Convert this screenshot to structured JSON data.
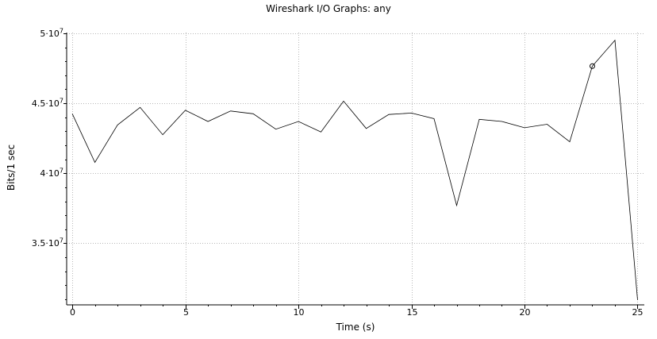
{
  "window": {
    "title": "Wireshark I/O Graphs: any"
  },
  "axes": {
    "x_title": "Time (s)",
    "y_title": "Bits/1 sec"
  },
  "chart_data": {
    "type": "line",
    "title": "Wireshark I/O Graphs: any",
    "xlabel": "Time (s)",
    "ylabel": "Bits/1 sec",
    "xlim": [
      -0.25,
      25.3
    ],
    "ylim": [
      30600000,
      50050000
    ],
    "grid": true,
    "x_ticks": [
      {
        "value": 0,
        "label": "0"
      },
      {
        "value": 5,
        "label": "5"
      },
      {
        "value": 10,
        "label": "10"
      },
      {
        "value": 15,
        "label": "15"
      },
      {
        "value": 20,
        "label": "20"
      },
      {
        "value": 25,
        "label": "25"
      }
    ],
    "y_ticks": [
      {
        "value": 35000000,
        "mantissa": "3.5",
        "base": "10",
        "exponent": "7"
      },
      {
        "value": 40000000,
        "mantissa": "4",
        "base": "10",
        "exponent": "7"
      },
      {
        "value": 45000000,
        "mantissa": "4.5",
        "base": "10",
        "exponent": "7"
      },
      {
        "value": 50000000,
        "mantissa": "5",
        "base": "10",
        "exponent": "7"
      }
    ],
    "series": [
      {
        "color": "#000000",
        "x": [
          0,
          1,
          2,
          3,
          4,
          5,
          6,
          7,
          8,
          9,
          10,
          11,
          12,
          13,
          14,
          15,
          16,
          17,
          18,
          19,
          20,
          21,
          22,
          23,
          24,
          25
        ],
        "values": [
          44250000,
          40780000,
          43450000,
          44700000,
          42750000,
          44500000,
          43700000,
          44450000,
          44250000,
          43150000,
          43700000,
          42950000,
          45150000,
          43200000,
          44200000,
          44300000,
          43900000,
          37700000,
          43850000,
          43700000,
          43250000,
          43500000,
          42250000,
          47650000,
          49500000,
          30950000
        ]
      }
    ],
    "marker": {
      "x": 23,
      "y": 47650000
    }
  }
}
